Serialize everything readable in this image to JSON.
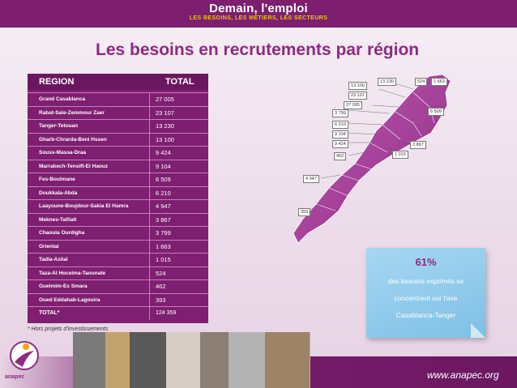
{
  "header": {
    "brand": "Demain, l'emploi",
    "tagline": "LES BESOINS, LES MÉTIERS, LES SECTEURS"
  },
  "title": "Les besoins en recrutements par région",
  "table": {
    "col_region": "REGION",
    "col_total": "TOTAL",
    "rows": [
      {
        "region": "Grand Casablanca",
        "total": "27 005"
      },
      {
        "region": "Rabat-Sale-Zemmour Zaer",
        "total": "23 107"
      },
      {
        "region": "Tanger-Tetouan",
        "total": "13 230"
      },
      {
        "region": "Gharb-Chrarda-Beni Hssen",
        "total": "13 100"
      },
      {
        "region": "Souss-Massa-Draa",
        "total": "9 424"
      },
      {
        "region": "Marrakech-Tensift-El Haouz",
        "total": "9 104"
      },
      {
        "region": "Fes-Boulmane",
        "total": "6 509"
      },
      {
        "region": "Doukkala-Abda",
        "total": "6 210"
      },
      {
        "region": "Laayoune-Boujdour-Sakia El Hamra",
        "total": "4 947"
      },
      {
        "region": "Meknes-Tafilalt",
        "total": "3 867"
      },
      {
        "region": "Chaouia Ourdigha",
        "total": "3 799"
      },
      {
        "region": "Oriental",
        "total": "1 663"
      },
      {
        "region": "Tadla-Azilal",
        "total": "1 015"
      },
      {
        "region": "Taza-Al Hoceima-Taounate",
        "total": "524"
      },
      {
        "region": "Guelmim-Es Smara",
        "total": "462"
      },
      {
        "region": "Oued Eddahab-Lagouira",
        "total": "393"
      }
    ],
    "total_label": "TOTAL*",
    "total_value": "124 359"
  },
  "footnote": "* Hors projets d'investissements",
  "map_labels": {
    "l13230": "13 230",
    "l524": "524",
    "l1663": "1 663",
    "l13100": "13 100",
    "l23107": "23 107",
    "l27005": "27 005",
    "l3799": "3 799",
    "l6509": "6 509",
    "l6210": "6 210",
    "l9104": "9 104",
    "l9424": "9 424",
    "l3867": "3 867",
    "l462": "462",
    "l1015": "1 015",
    "l4947": "4 947",
    "l393": "393"
  },
  "note": {
    "percent": "61%",
    "line1": "des besoins exprimés se",
    "line2": "concentrent sur l'axe",
    "line3": "Casablanca-Tanger"
  },
  "logo_text": "anapec",
  "url": "www.anapec.org",
  "colors": {
    "brand_purple": "#7d1e6e",
    "title_purple": "#8e2a80",
    "map_fill": "#a9459f",
    "note_blue": "#8ecbeb",
    "tagline_yellow": "#f3c300"
  }
}
